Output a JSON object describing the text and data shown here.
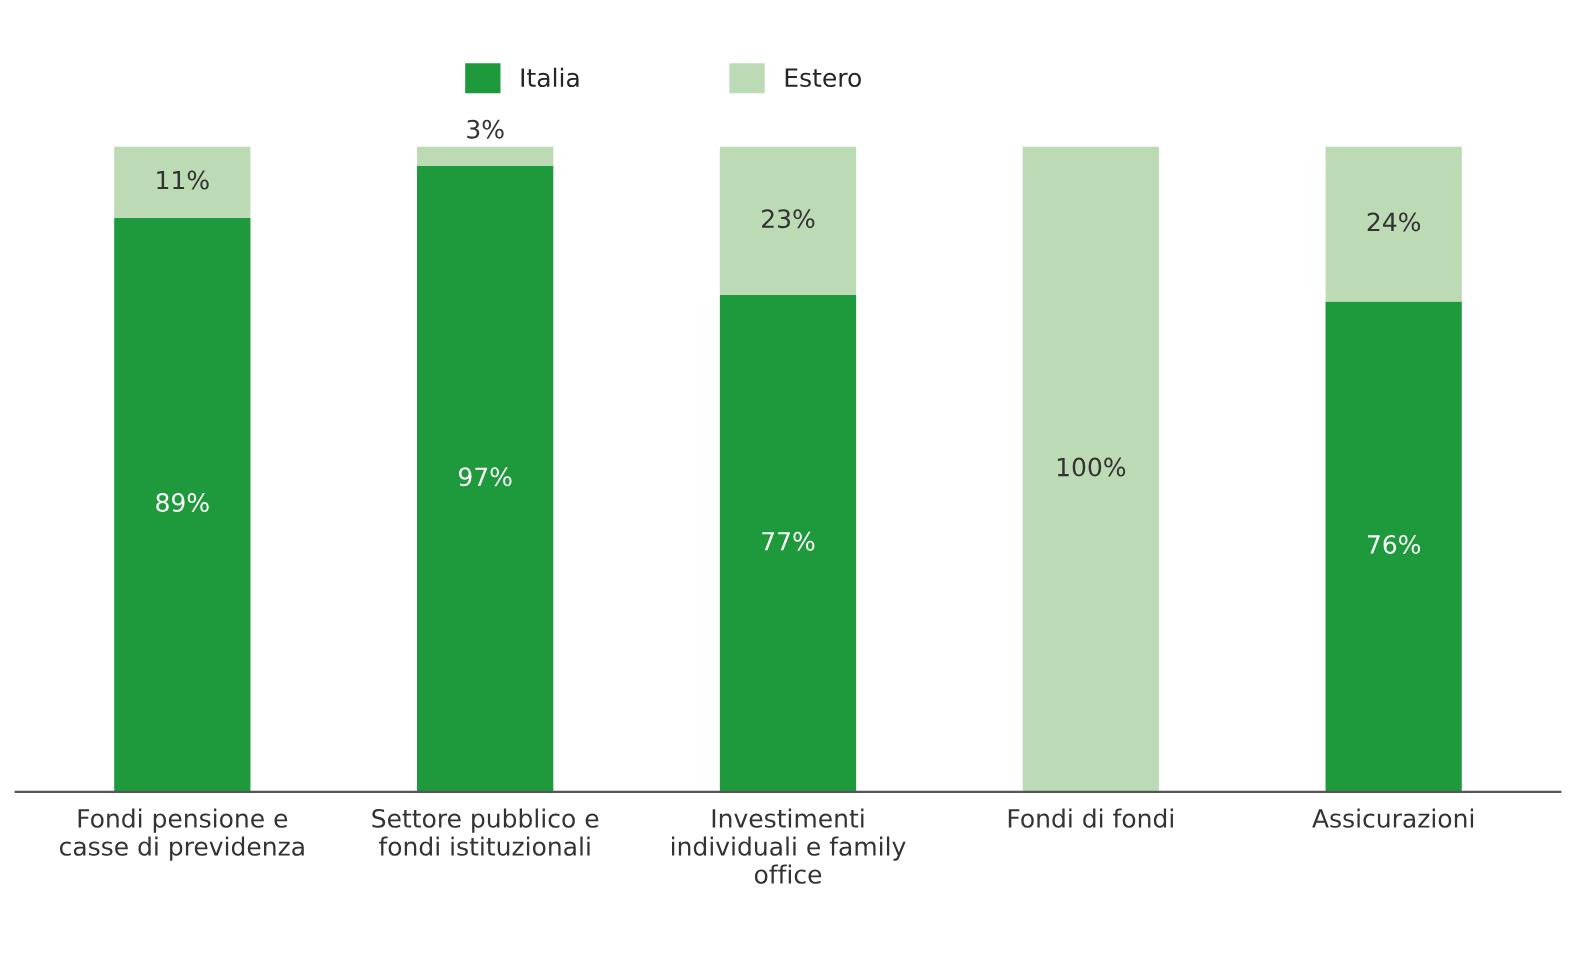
{
  "chart_data": {
    "type": "bar",
    "stacked": true,
    "legend": "top",
    "grid": false,
    "categories": [
      "Fondi pensione e\ncasse di previdenza",
      "Settore pubblico e\nfondi istituzionali",
      "Investimenti\nindividuali e family\noffice",
      "Fondi di fondi",
      "Assicurazioni"
    ],
    "series": [
      {
        "name": "Italia",
        "color": "#1e9a3c",
        "values": [
          89,
          97,
          77,
          0,
          76
        ],
        "value_labels": [
          "89%",
          "97%",
          "77%",
          null,
          "76%"
        ]
      },
      {
        "name": "Estero",
        "color": "#bcdbb4",
        "values": [
          11,
          3,
          23,
          100,
          24
        ],
        "value_labels": [
          "11%",
          "3%",
          "23%",
          "100%",
          "24%"
        ]
      }
    ]
  }
}
